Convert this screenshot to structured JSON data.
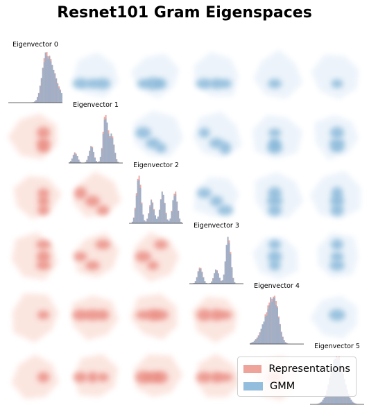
{
  "title": "Resnet101 Gram Eigenspaces",
  "colors": {
    "representations": "#e8847a",
    "gmm": "#7fb2d6",
    "lower_panel": "#fbe3dc",
    "upper_panel": "#eaf2fa"
  },
  "legend": {
    "representations": "Representations",
    "gmm": "GMM"
  },
  "chart_data": {
    "type": "pair-grid",
    "title": "Resnet101 Gram Eigenspaces",
    "n": 6,
    "diagonal_type": "histogram",
    "upper_type": "density",
    "lower_type": "density",
    "series": [
      {
        "name": "Representations",
        "color": "#e8847a"
      },
      {
        "name": "GMM",
        "color": "#7fb2d6"
      }
    ],
    "variables": [
      {
        "label": "Eigenvector 0",
        "modes": [
          [
            0.7,
            1.0
          ]
        ],
        "skew": -0.35
      },
      {
        "label": "Eigenvector 1",
        "modes": [
          [
            0.12,
            0.22
          ],
          [
            0.42,
            0.35
          ],
          [
            0.68,
            1.0
          ],
          [
            0.8,
            0.55
          ]
        ],
        "skew": 0
      },
      {
        "label": "Eigenvector 2",
        "modes": [
          [
            0.18,
            0.95
          ],
          [
            0.42,
            0.45
          ],
          [
            0.62,
            0.6
          ],
          [
            0.85,
            0.62
          ]
        ],
        "skew": 0
      },
      {
        "label": "Eigenvector 3",
        "modes": [
          [
            0.2,
            0.35
          ],
          [
            0.5,
            0.3
          ],
          [
            0.72,
            1.0
          ]
        ],
        "skew": 0
      },
      {
        "label": "Eigenvector 4",
        "modes": [
          [
            0.45,
            1.0
          ]
        ],
        "skew": 0.3
      },
      {
        "label": "Eigenvector 5",
        "modes": [
          [
            0.5,
            1.0
          ]
        ],
        "skew": 0
      }
    ]
  }
}
